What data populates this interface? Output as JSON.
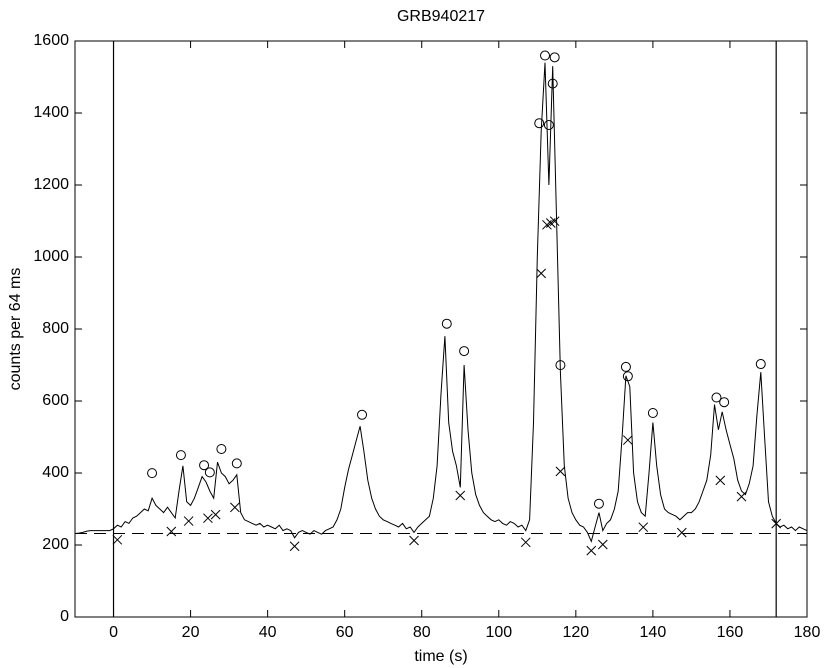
{
  "chart_data": {
    "type": "line",
    "title": "GRB940217",
    "xlabel": "time (s)",
    "ylabel": "counts per 64 ms",
    "xlim": [
      -10,
      180
    ],
    "xticks": [
      0,
      20,
      40,
      60,
      80,
      100,
      120,
      140,
      160,
      180
    ],
    "ylim": [
      0,
      1600
    ],
    "yticks": [
      0,
      200,
      400,
      600,
      800,
      1000,
      1200,
      1400,
      1600
    ],
    "vlines": [
      0,
      172
    ],
    "series": [
      {
        "style": "line",
        "color": "#000000",
        "x": [
          -10,
          -9,
          -8,
          -7,
          -6,
          -5,
          -4,
          -3,
          -2,
          -1,
          0,
          1,
          2,
          3,
          4,
          5,
          6,
          7,
          8,
          9,
          10,
          11,
          12,
          13,
          14,
          15,
          16,
          17,
          18,
          19,
          20,
          21,
          22,
          23,
          24,
          25,
          26,
          27,
          28,
          29,
          30,
          31,
          32,
          33,
          34,
          35,
          36,
          37,
          38,
          39,
          40,
          41,
          42,
          43,
          44,
          45,
          46,
          47,
          48,
          49,
          50,
          51,
          52,
          53,
          54,
          55,
          56,
          57,
          58,
          59,
          60,
          61,
          62,
          63,
          64,
          65,
          66,
          67,
          68,
          69,
          70,
          71,
          72,
          73,
          74,
          75,
          76,
          77,
          78,
          79,
          80,
          81,
          82,
          83,
          84,
          85,
          86,
          87,
          88,
          89,
          90,
          91,
          92,
          93,
          94,
          95,
          96,
          97,
          98,
          99,
          100,
          101,
          102,
          103,
          104,
          105,
          106,
          107,
          108,
          109,
          110,
          111,
          112,
          113,
          114,
          115,
          116,
          117,
          118,
          119,
          120,
          121,
          122,
          123,
          124,
          125,
          126,
          127,
          128,
          129,
          130,
          131,
          132,
          133,
          134,
          135,
          136,
          137,
          138,
          139,
          140,
          141,
          142,
          143,
          144,
          145,
          146,
          147,
          148,
          149,
          150,
          151,
          152,
          153,
          154,
          155,
          156,
          157,
          158,
          159,
          160,
          161,
          162,
          163,
          164,
          165,
          166,
          167,
          168,
          169,
          170,
          171,
          172,
          173,
          174,
          175,
          176,
          177,
          178,
          179,
          180
        ],
        "values": [
          232,
          233,
          235,
          238,
          240,
          240,
          240,
          240,
          240,
          240,
          245,
          255,
          250,
          265,
          260,
          275,
          280,
          290,
          300,
          295,
          330,
          310,
          300,
          290,
          305,
          290,
          275,
          350,
          420,
          320,
          310,
          330,
          360,
          390,
          375,
          350,
          330,
          430,
          400,
          390,
          370,
          380,
          395,
          290,
          270,
          265,
          260,
          255,
          260,
          250,
          255,
          250,
          245,
          255,
          240,
          245,
          240,
          220,
          235,
          240,
          235,
          230,
          240,
          235,
          230,
          240,
          245,
          250,
          270,
          300,
          360,
          410,
          450,
          490,
          530,
          460,
          380,
          330,
          300,
          280,
          270,
          265,
          260,
          255,
          250,
          260,
          245,
          250,
          235,
          250,
          260,
          270,
          280,
          330,
          420,
          620,
          780,
          540,
          460,
          420,
          360,
          700,
          520,
          400,
          340,
          310,
          290,
          280,
          270,
          265,
          270,
          260,
          255,
          265,
          260,
          250,
          255,
          240,
          270,
          540,
          1000,
          1350,
          1540,
          1200,
          1530,
          1100,
          680,
          420,
          330,
          290,
          270,
          255,
          250,
          235,
          210,
          250,
          290,
          240,
          260,
          270,
          300,
          350,
          500,
          670,
          640,
          400,
          320,
          290,
          280,
          400,
          540,
          420,
          340,
          300,
          290,
          285,
          280,
          270,
          280,
          290,
          290,
          300,
          320,
          350,
          380,
          450,
          590,
          520,
          570,
          520,
          480,
          440,
          380,
          350,
          340,
          370,
          420,
          560,
          680,
          500,
          320,
          280,
          260,
          250,
          255,
          245,
          250,
          240,
          250,
          245,
          240
        ]
      },
      {
        "style": "circle",
        "color": "#000000",
        "x": [
          10,
          17.5,
          23.5,
          25,
          28,
          32,
          64.5,
          86.5,
          91,
          110.5,
          112,
          113,
          114,
          114.5,
          116,
          126,
          133,
          133.5,
          140,
          156.5,
          158.5,
          168
        ],
        "values": [
          383,
          433,
          405,
          385,
          450,
          410,
          545,
          798,
          722,
          1355,
          1543,
          1350,
          1465,
          1538,
          683,
          298,
          678,
          652,
          550,
          593,
          580,
          686
        ]
      },
      {
        "style": "x",
        "color": "#000000",
        "x": [
          1,
          15,
          19.5,
          24.5,
          26.5,
          31.5,
          47,
          78,
          90,
          107,
          111,
          112.5,
          113.5,
          114.5,
          116,
          124,
          127,
          133.5,
          137.5,
          147.5,
          157.5,
          163,
          172
        ],
        "values": [
          220,
          243,
          272,
          280,
          290,
          310,
          202,
          218,
          343,
          213,
          960,
          1095,
          1100,
          1105,
          410,
          190,
          207,
          497,
          255,
          240,
          385,
          340,
          265
        ]
      },
      {
        "style": "dashed",
        "color": "#000000",
        "x": [
          -10,
          180
        ],
        "values": [
          232,
          232
        ]
      }
    ]
  }
}
